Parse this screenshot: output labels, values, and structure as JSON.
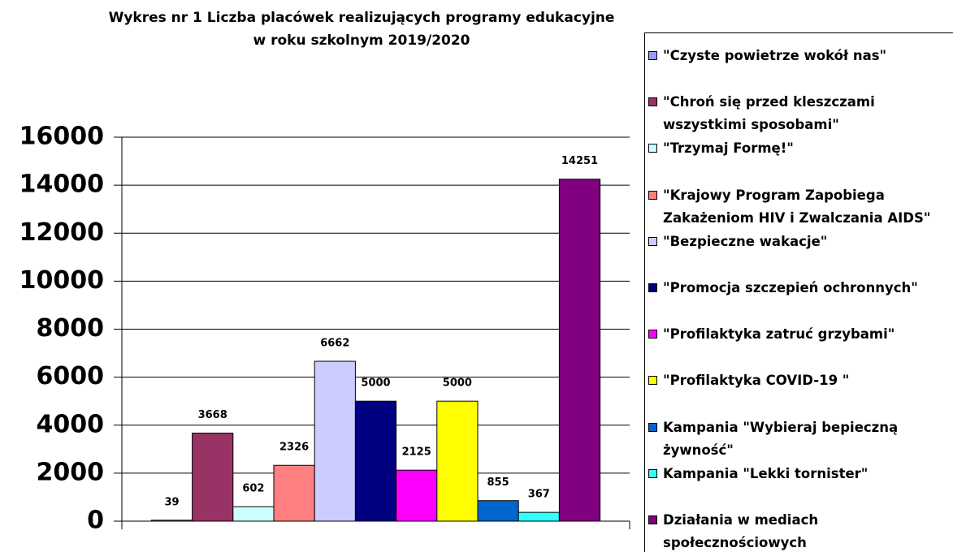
{
  "chart_data": {
    "type": "bar",
    "title": [
      "Wykres nr 1 Liczba placówek realizujących programy edukacyjne",
      "w roku szkolnym 2019/2020"
    ],
    "series": [
      {
        "name": "\"Czyste powietrze wokół nas\"",
        "color": "#9999ff",
        "values": [
          39
        ]
      },
      {
        "name": "\"Chroń się przed kleszczami wszystkimi sposobami\"",
        "color": "#993366",
        "values": [
          3668
        ]
      },
      {
        "name": "\"Trzymaj Formę!\"",
        "color": "#ccffff",
        "values": [
          602
        ]
      },
      {
        "name": "\"Krajowy Program Zapobiega Zakażeniom HIV i Zwalczania AIDS\"",
        "color": "#ff8080",
        "values": [
          2326
        ]
      },
      {
        "name": "\"Bezpieczne wakacje\"",
        "color": "#ccccff",
        "values": [
          6662
        ]
      },
      {
        "name": "\"Promocja szczepień ochronnych\"",
        "color": "#000080",
        "values": [
          5000
        ]
      },
      {
        "name": "\"Profilaktyka zatruć grzybami\"",
        "color": "#ff00ff",
        "values": [
          2125
        ]
      },
      {
        "name": "\"Profilaktyka COVID-19 \"",
        "color": "#ffff00",
        "values": [
          5000
        ]
      },
      {
        "name": "Kampania \"Wybieraj bepieczną żywność\"",
        "color": "#0066cc",
        "values": [
          855
        ]
      },
      {
        "name": "Kampania \"Lekki tornister\"",
        "color": "#33ffff",
        "values": [
          367
        ]
      },
      {
        "name": "Działania w mediach społecznościowych",
        "color": "#800080",
        "values": [
          14251
        ]
      }
    ],
    "ylim": [
      0,
      16000
    ],
    "yticks": [
      0,
      2000,
      4000,
      6000,
      8000,
      10000,
      12000,
      14000,
      16000
    ],
    "grid": true
  }
}
